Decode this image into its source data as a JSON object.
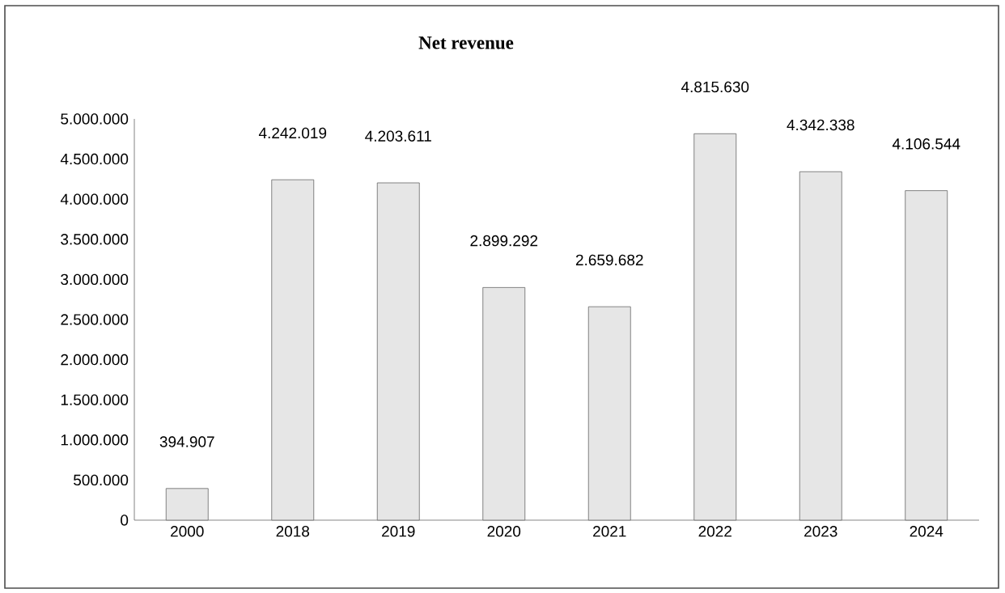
{
  "chart_data": {
    "type": "bar",
    "title": "Net revenue",
    "categories": [
      "2000",
      "2018",
      "2019",
      "2020",
      "2021",
      "2022",
      "2023",
      "2024"
    ],
    "values": [
      394907,
      4242019,
      4203611,
      2899292,
      2659682,
      4815630,
      4342338,
      4106544
    ],
    "value_labels": [
      "394.907",
      "4.242.019",
      "4.203.611",
      "2.899.292",
      "2.659.682",
      "4.815.630",
      "4.342.338",
      "4.106.544"
    ],
    "color": "#e6e6e6",
    "ylim": [
      0,
      5000000
    ],
    "yticks": [
      {
        "value": 0,
        "label": "0"
      },
      {
        "value": 500000,
        "label": "500.000"
      },
      {
        "value": 1000000,
        "label": "1.000.000"
      },
      {
        "value": 1500000,
        "label": "1.500.000"
      },
      {
        "value": 2000000,
        "label": "2.000.000"
      },
      {
        "value": 2500000,
        "label": "2.500.000"
      },
      {
        "value": 3000000,
        "label": "3.000.000"
      },
      {
        "value": 3500000,
        "label": "3.500.000"
      },
      {
        "value": 4000000,
        "label": "4.000.000"
      },
      {
        "value": 4500000,
        "label": "4.500.000"
      },
      {
        "value": 5000000,
        "label": "5.000.000"
      }
    ],
    "grid": false
  }
}
